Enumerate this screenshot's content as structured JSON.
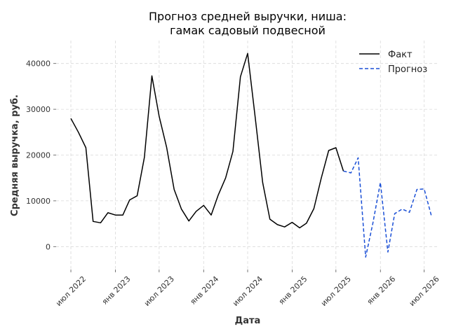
{
  "chart_data": {
    "type": "line",
    "title": [
      "Прогноз средней выручки, ниша:",
      "гамак садовый подвесной"
    ],
    "xlabel": "Дата",
    "ylabel": "Средняя выручка, руб.",
    "xlim": [
      "2022-05-01",
      "2026-09-01"
    ],
    "ylim": [
      -5000,
      45000
    ],
    "y_ticks": [
      0,
      10000,
      20000,
      30000,
      40000
    ],
    "y_tick_labels": [
      "0",
      "10000",
      "20000",
      "30000",
      "40000"
    ],
    "x_ticks": [
      "2022-07-01",
      "2023-01-01",
      "2023-07-01",
      "2024-01-01",
      "2024-07-01",
      "2025-01-01",
      "2025-07-01",
      "2026-01-01",
      "2026-07-01"
    ],
    "x_tick_labels": [
      "июл 2022",
      "янв 2023",
      "июл 2023",
      "янв 2024",
      "июл 2024",
      "янв 2025",
      "июл 2025",
      "янв 2026",
      "июл 2026"
    ],
    "grid": true,
    "legend_position": "top-right",
    "colors": {
      "fact": "#000000",
      "forecast": "#1a4fd6"
    },
    "series": [
      {
        "name": "Факт",
        "style": "solid",
        "x": [
          "2022-07-01",
          "2022-08-01",
          "2022-09-01",
          "2022-10-01",
          "2022-11-01",
          "2022-12-01",
          "2023-01-01",
          "2023-02-01",
          "2023-03-01",
          "2023-04-01",
          "2023-05-01",
          "2023-06-01",
          "2023-07-01",
          "2023-08-01",
          "2023-09-01",
          "2023-10-01",
          "2023-11-01",
          "2023-12-01",
          "2024-01-01",
          "2024-02-01",
          "2024-03-01",
          "2024-04-01",
          "2024-05-01",
          "2024-06-01",
          "2024-07-01",
          "2024-08-01",
          "2024-09-01",
          "2024-10-01",
          "2024-11-01",
          "2024-12-01",
          "2025-01-01",
          "2025-02-01",
          "2025-03-01",
          "2025-04-01",
          "2025-05-01",
          "2025-06-01",
          "2025-07-01",
          "2025-08-01"
        ],
        "values": [
          28000,
          25000,
          21600,
          5500,
          5200,
          7400,
          6900,
          6900,
          10200,
          11100,
          19500,
          37300,
          28500,
          21700,
          12500,
          8200,
          5600,
          7700,
          9000,
          6900,
          11200,
          15000,
          20800,
          37100,
          42200,
          28300,
          14000,
          6000,
          4800,
          4300,
          5300,
          4100,
          5100,
          8300,
          14900,
          21000,
          21600,
          16500
        ]
      },
      {
        "name": "Прогноз",
        "style": "dashed",
        "x": [
          "2025-08-01",
          "2025-09-01",
          "2025-10-01",
          "2025-11-01",
          "2025-12-01",
          "2026-01-01",
          "2026-02-01",
          "2026-03-01",
          "2026-04-01",
          "2026-05-01",
          "2026-06-01",
          "2026-07-01",
          "2026-08-01"
        ],
        "values": [
          16500,
          16100,
          19400,
          -2300,
          5200,
          14000,
          -1200,
          7200,
          8200,
          7500,
          12500,
          12600,
          6500
        ]
      }
    ]
  }
}
